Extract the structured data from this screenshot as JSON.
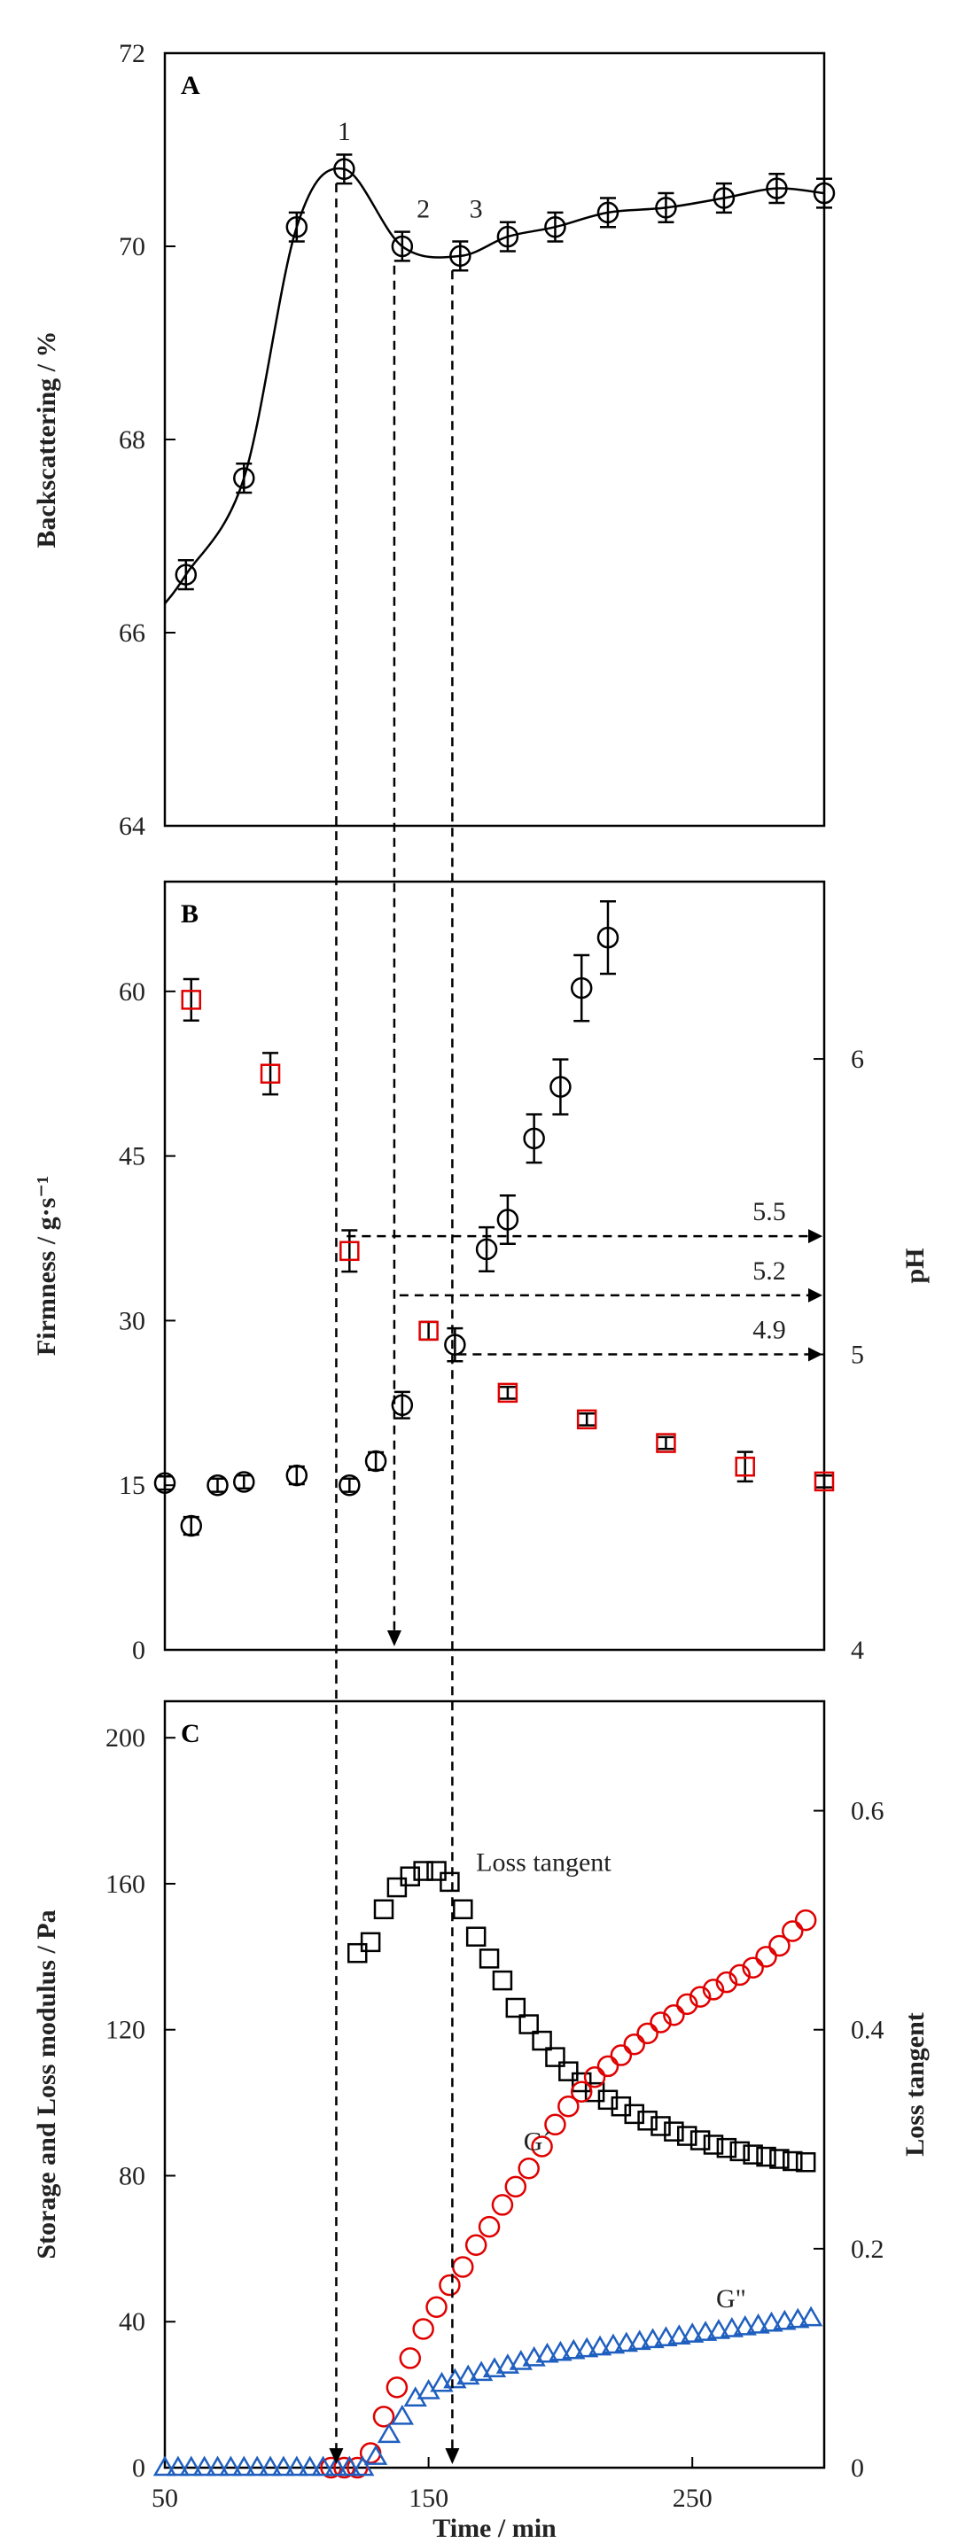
{
  "chart_data": [
    {
      "panel": "A",
      "type": "line",
      "ylabel": "Backscattering / %",
      "ylim": [
        64,
        72
      ],
      "yticks": [
        "64",
        "66",
        "68",
        "70",
        "72"
      ],
      "xlim": [
        50,
        300
      ],
      "series": [
        {
          "marker": "circle",
          "color": "#000000",
          "x": [
            58,
            80,
            100,
            118,
            140,
            162,
            180,
            198,
            218,
            240,
            262,
            282,
            300
          ],
          "y": [
            66.6,
            67.6,
            70.2,
            70.8,
            70.0,
            69.9,
            70.1,
            70.2,
            70.35,
            70.4,
            70.5,
            70.6,
            70.55
          ],
          "err": [
            0.15,
            0.15,
            0.15,
            0.15,
            0.15,
            0.15,
            0.15,
            0.15,
            0.15,
            0.15,
            0.15,
            0.15,
            0.15
          ]
        }
      ],
      "point_labels": [
        {
          "text": "1",
          "x": 118,
          "y": 71.1
        },
        {
          "text": "2",
          "x": 148,
          "y": 70.3
        },
        {
          "text": "3",
          "x": 168,
          "y": 70.3
        }
      ]
    },
    {
      "panel": "B",
      "type": "scatter",
      "ylabel": "Firmness / g·s⁻¹",
      "ylim": [
        0,
        70
      ],
      "yticks": [
        "0",
        "15",
        "30",
        "45",
        "60"
      ],
      "y2label": "pH",
      "y2lim": [
        4,
        6.6
      ],
      "y2ticks": [
        "4",
        "5",
        "6"
      ],
      "xlim": [
        50,
        300
      ],
      "series": [
        {
          "axis": "left",
          "marker": "circle",
          "color": "#000000",
          "x": [
            50,
            60,
            70,
            80,
            100,
            120,
            130,
            140,
            160,
            172,
            180,
            190,
            200,
            208,
            218
          ],
          "y": [
            15.2,
            11.3,
            15.0,
            15.3,
            15.9,
            15.0,
            17.2,
            22.3,
            27.8,
            36.5,
            39.2,
            46.6,
            51.3,
            60.3,
            64.9
          ],
          "err": [
            0.6,
            0.8,
            0.6,
            0.6,
            0.8,
            0.6,
            0.8,
            1.2,
            1.5,
            2.0,
            2.2,
            2.2,
            2.5,
            3.0,
            3.3
          ]
        },
        {
          "axis": "right",
          "marker": "square",
          "color": "#e00000",
          "x": [
            60,
            90,
            120,
            150,
            180,
            210,
            240,
            270,
            300
          ],
          "y": [
            6.2,
            5.95,
            5.35,
            5.08,
            4.87,
            4.78,
            4.7,
            4.62,
            4.57
          ],
          "err": [
            0.07,
            0.07,
            0.07,
            0.03,
            0.02,
            0.02,
            0.02,
            0.05,
            0.02
          ]
        }
      ],
      "annotations": [
        {
          "text": "5.5",
          "y2": 5.4,
          "from_x": 119
        },
        {
          "text": "5.2",
          "y2": 5.2,
          "from_x": 139
        },
        {
          "text": "4.9",
          "y2": 5.0,
          "from_x": 161
        }
      ]
    },
    {
      "panel": "C",
      "type": "scatter",
      "ylabel": "Storage and Loss modulus / Pa",
      "ylim": [
        0,
        210
      ],
      "yticks": [
        "0",
        "40",
        "80",
        "120",
        "160",
        "200"
      ],
      "y2label": "Loss tangent",
      "y2lim": [
        0,
        0.7
      ],
      "y2ticks": [
        "0",
        "0.2",
        "0.4",
        "0.6"
      ],
      "xlabel": "Time / min",
      "xlim": [
        50,
        300
      ],
      "xticks": [
        "50",
        "150",
        "250"
      ],
      "series": [
        {
          "name": "Loss tangent",
          "axis": "right",
          "marker": "square",
          "color": "#000000",
          "x": [
            123,
            128,
            133,
            138,
            143,
            148,
            153,
            158,
            163,
            168,
            173,
            178,
            183,
            188,
            193,
            198,
            203,
            208,
            213,
            218,
            223,
            228,
            233,
            238,
            243,
            248,
            253,
            258,
            263,
            268,
            273,
            278,
            283,
            288,
            293
          ],
          "y": [
            0.47,
            0.48,
            0.51,
            0.53,
            0.54,
            0.545,
            0.545,
            0.535,
            0.51,
            0.485,
            0.465,
            0.445,
            0.42,
            0.405,
            0.39,
            0.375,
            0.362,
            0.352,
            0.343,
            0.336,
            0.33,
            0.323,
            0.317,
            0.312,
            0.307,
            0.303,
            0.299,
            0.295,
            0.292,
            0.289,
            0.286,
            0.284,
            0.282,
            0.28,
            0.279
          ]
        },
        {
          "name": "G´",
          "axis": "left",
          "marker": "circle",
          "color": "#e00000",
          "x": [
            113,
            118,
            123,
            128,
            133,
            138,
            143,
            148,
            153,
            158,
            163,
            168,
            173,
            178,
            183,
            188,
            193,
            198,
            203,
            208,
            213,
            218,
            223,
            228,
            233,
            238,
            243,
            248,
            253,
            258,
            263,
            268,
            273,
            278,
            283,
            288,
            293
          ],
          "y": [
            0,
            0,
            0,
            4,
            14,
            22,
            30,
            38,
            44,
            50,
            55,
            61,
            66,
            72,
            77,
            82,
            88,
            94,
            99,
            103,
            107,
            110,
            113,
            116,
            119,
            122,
            124,
            127,
            129,
            131,
            133,
            135,
            137,
            140,
            143,
            147,
            150
          ]
        },
        {
          "name": "G\"",
          "axis": "left",
          "marker": "triangle",
          "color": "#1f5fbf",
          "x": [
            50,
            55,
            60,
            65,
            70,
            75,
            80,
            85,
            90,
            95,
            100,
            105,
            110,
            115,
            120,
            125,
            130,
            135,
            140,
            145,
            150,
            155,
            160,
            165,
            170,
            175,
            180,
            185,
            190,
            195,
            200,
            205,
            210,
            215,
            220,
            225,
            230,
            235,
            240,
            245,
            250,
            255,
            260,
            265,
            270,
            275,
            280,
            285,
            290,
            295
          ],
          "y": [
            0,
            0,
            0,
            0,
            0,
            0,
            0,
            0,
            0,
            0,
            0,
            0,
            0,
            0,
            0,
            0,
            3,
            9,
            14,
            19,
            21,
            23,
            24,
            25,
            26,
            27,
            28,
            29,
            30,
            31,
            31.5,
            32,
            32.5,
            33,
            33.5,
            34,
            34.5,
            35,
            35.5,
            36,
            36.5,
            37,
            37.5,
            38,
            38.5,
            39,
            39.5,
            40,
            40.5,
            41
          ]
        }
      ],
      "series_labels": [
        {
          "text": "Loss tangent",
          "x": 168,
          "y2": 0.545
        },
        {
          "text": "G´",
          "x": 186,
          "y": 87
        },
        {
          "text": "G\"",
          "x": 259,
          "y": 44
        }
      ]
    }
  ],
  "guides": [
    {
      "x": 115,
      "arrow_in_panel": "C"
    },
    {
      "x": 137,
      "arrow_in_panel": "B"
    },
    {
      "x": 159,
      "arrow_in_panel": "C"
    }
  ]
}
